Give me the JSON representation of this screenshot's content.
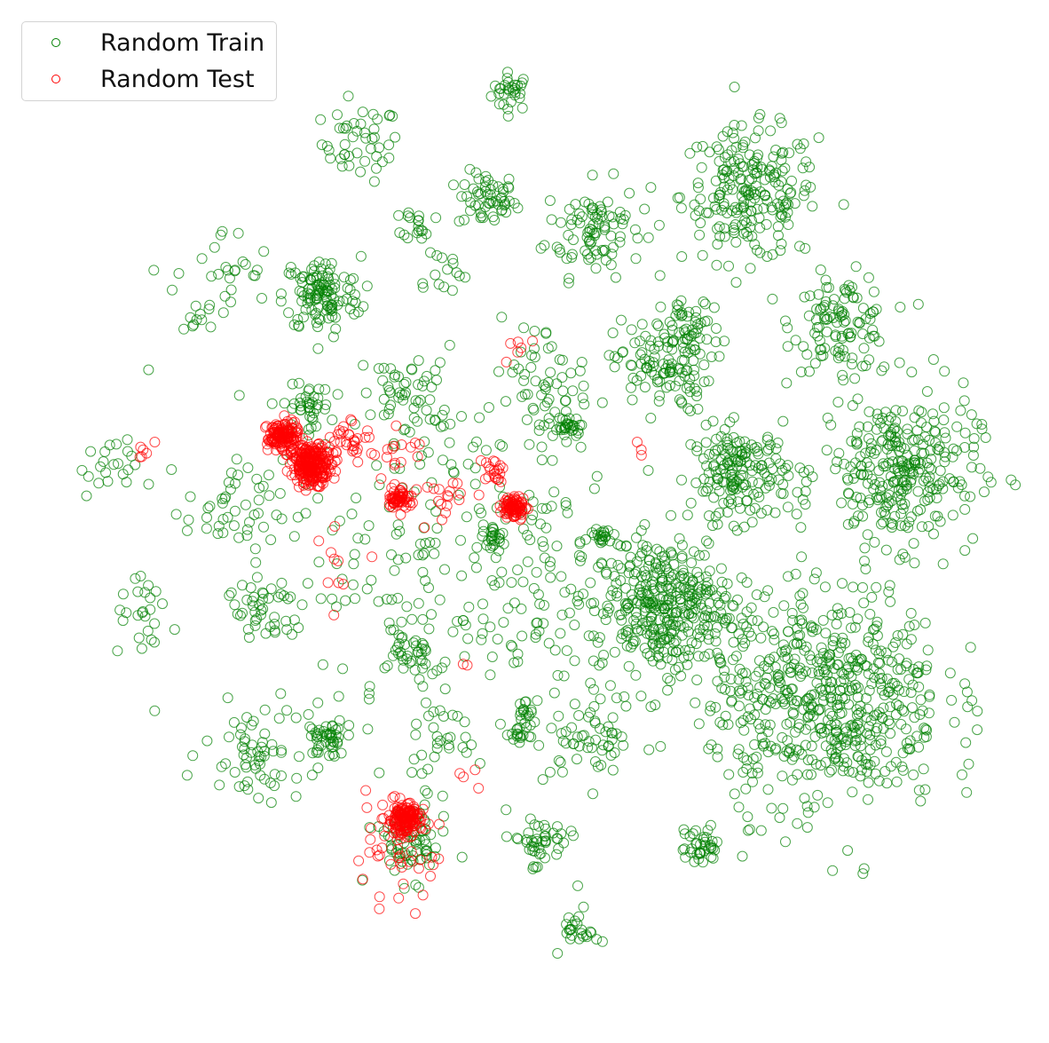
{
  "chart_data": {
    "type": "scatter",
    "title": "",
    "xlabel": "",
    "ylabel": "",
    "axes_visible": false,
    "grid": false,
    "legend_position": "top-left",
    "marker": "hollow-circle",
    "xlim": [
      0,
      100
    ],
    "ylim": [
      0,
      100
    ],
    "series": [
      {
        "name": "Random Train",
        "color": "#008000",
        "clusters": [
          {
            "center": [
              48.5,
              95.5
            ],
            "spread": 1.0,
            "count": 30
          },
          {
            "center": [
              33.0,
              90.0
            ],
            "spread": 2.0,
            "count": 45
          },
          {
            "center": [
              46.0,
              84.0
            ],
            "spread": 1.5,
            "count": 55
          },
          {
            "center": [
              57.0,
              81.0
            ],
            "spread": 2.5,
            "count": 90
          },
          {
            "center": [
              73.0,
              84.5
            ],
            "spread": 3.5,
            "count": 220
          },
          {
            "center": [
              82.5,
              71.0
            ],
            "spread": 2.5,
            "count": 110
          },
          {
            "center": [
              29.0,
              74.0
            ],
            "spread": 2.0,
            "count": 120
          },
          {
            "center": [
              19.0,
              76.0
            ],
            "spread": 2.5,
            "count": 25
          },
          {
            "center": [
              16.5,
              72.0
            ],
            "spread": 1.0,
            "count": 12
          },
          {
            "center": [
              39.0,
              81.5
            ],
            "spread": 0.8,
            "count": 18
          },
          {
            "center": [
              41.0,
              76.5
            ],
            "spread": 1.5,
            "count": 15
          },
          {
            "center": [
              64.0,
              66.5
            ],
            "spread": 2.5,
            "count": 120
          },
          {
            "center": [
              67.0,
              70.5
            ],
            "spread": 1.5,
            "count": 35
          },
          {
            "center": [
              38.0,
              63.5
            ],
            "spread": 2.5,
            "count": 55
          },
          {
            "center": [
              27.5,
              62.0
            ],
            "spread": 1.2,
            "count": 40
          },
          {
            "center": [
              51.5,
              66.0
            ],
            "spread": 2.5,
            "count": 35
          },
          {
            "center": [
              54.5,
              60.0
            ],
            "spread": 0.6,
            "count": 25
          },
          {
            "center": [
              72.0,
              55.0
            ],
            "spread": 2.5,
            "count": 170
          },
          {
            "center": [
              88.5,
              55.5
            ],
            "spread": 4.0,
            "count": 300
          },
          {
            "center": [
              7.0,
              55.5
            ],
            "spread": 1.5,
            "count": 22
          },
          {
            "center": [
              20.0,
              51.5
            ],
            "spread": 2.5,
            "count": 45
          },
          {
            "center": [
              45.0,
              45.0
            ],
            "spread": 10.0,
            "count": 280
          },
          {
            "center": [
              64.0,
              41.0
            ],
            "spread": 3.5,
            "count": 350
          },
          {
            "center": [
              81.0,
              31.5
            ],
            "spread": 6.0,
            "count": 600
          },
          {
            "center": [
              11.0,
              39.5
            ],
            "spread": 1.8,
            "count": 25
          },
          {
            "center": [
              23.0,
              40.5
            ],
            "spread": 2.0,
            "count": 45
          },
          {
            "center": [
              38.0,
              35.5
            ],
            "spread": 1.5,
            "count": 35
          },
          {
            "center": [
              29.5,
              27.0
            ],
            "spread": 1.0,
            "count": 45
          },
          {
            "center": [
              22.0,
              26.0
            ],
            "spread": 2.5,
            "count": 60
          },
          {
            "center": [
              40.5,
              27.0
            ],
            "spread": 1.5,
            "count": 25
          },
          {
            "center": [
              50.0,
              30.0
            ],
            "spread": 0.5,
            "count": 15
          },
          {
            "center": [
              49.5,
              27.5
            ],
            "spread": 0.5,
            "count": 18
          },
          {
            "center": [
              57.0,
              27.0
            ],
            "spread": 2.5,
            "count": 55
          },
          {
            "center": [
              38.0,
              16.0
            ],
            "spread": 2.0,
            "count": 70
          },
          {
            "center": [
              51.5,
              16.0
            ],
            "spread": 1.5,
            "count": 45
          },
          {
            "center": [
              68.0,
              15.5
            ],
            "spread": 1.0,
            "count": 40
          },
          {
            "center": [
              55.5,
              7.0
            ],
            "spread": 1.0,
            "count": 25
          },
          {
            "center": [
              47.0,
              48.0
            ],
            "spread": 0.6,
            "count": 20
          },
          {
            "center": [
              57.5,
              48.5
            ],
            "spread": 0.7,
            "count": 20
          },
          {
            "center": [
              52.0,
              60.5
            ],
            "spread": 3.0,
            "count": 30
          }
        ]
      },
      {
        "name": "Random Test",
        "color": "#ff0000",
        "clusters": [
          {
            "center": [
              25.0,
              59.0
            ],
            "spread": 0.8,
            "count": 140
          },
          {
            "center": [
              28.0,
              56.0
            ],
            "spread": 1.0,
            "count": 260
          },
          {
            "center": [
              32.0,
              58.8
            ],
            "spread": 1.0,
            "count": 30
          },
          {
            "center": [
              37.0,
              52.5
            ],
            "spread": 0.6,
            "count": 60
          },
          {
            "center": [
              48.8,
              51.5
            ],
            "spread": 0.6,
            "count": 90
          },
          {
            "center": [
              46.5,
              55.5
            ],
            "spread": 0.6,
            "count": 20
          },
          {
            "center": [
              37.5,
              18.5
            ],
            "spread": 0.8,
            "count": 160
          },
          {
            "center": [
              36.0,
              15.0
            ],
            "spread": 2.5,
            "count": 45
          },
          {
            "center": [
              11.0,
              57.5
            ],
            "spread": 0.6,
            "count": 6
          },
          {
            "center": [
              36.5,
              57.0
            ],
            "spread": 1.5,
            "count": 15
          },
          {
            "center": [
              42.0,
              53.0
            ],
            "spread": 1.5,
            "count": 18
          },
          {
            "center": [
              30.5,
              45.0
            ],
            "spread": 2.0,
            "count": 10
          },
          {
            "center": [
              49.5,
              68.0
            ],
            "spread": 0.8,
            "count": 6
          },
          {
            "center": [
              62.0,
              58.0
            ],
            "spread": 0.3,
            "count": 3
          },
          {
            "center": [
              44.0,
              34.5
            ],
            "spread": 0.3,
            "count": 2
          },
          {
            "center": [
              44.0,
              23.0
            ],
            "spread": 0.6,
            "count": 4
          }
        ]
      }
    ]
  },
  "legend": {
    "items": [
      {
        "label": "Random Train",
        "color": "#008000"
      },
      {
        "label": "Random Test",
        "color": "#ff0000"
      }
    ]
  }
}
